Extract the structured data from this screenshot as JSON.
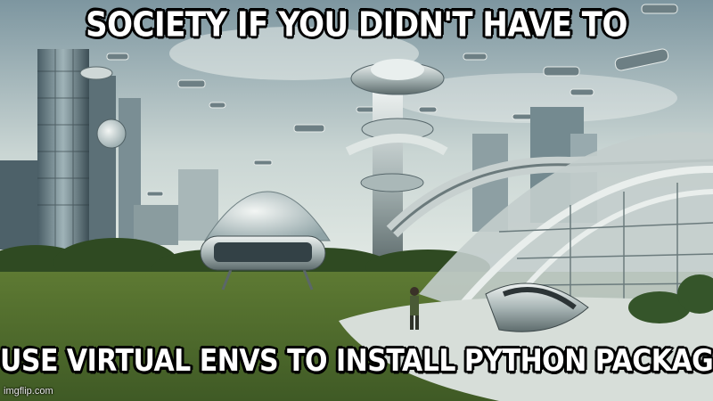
{
  "meme": {
    "top_text": "SOCIETY IF YOU DIDN'T HAVE TO",
    "bottom_text": "USE VIRTUAL ENVS TO INSTALL PYTHON PACKAGES",
    "watermark": "imgflip.com"
  },
  "colors": {
    "sky_top": "#8ea6ae",
    "sky_bottom": "#dfe6e2",
    "grass": "#4f6a2e",
    "trees": "#2f4a22",
    "glass": "#9fb4b9",
    "metal": "#c9d1d0"
  }
}
